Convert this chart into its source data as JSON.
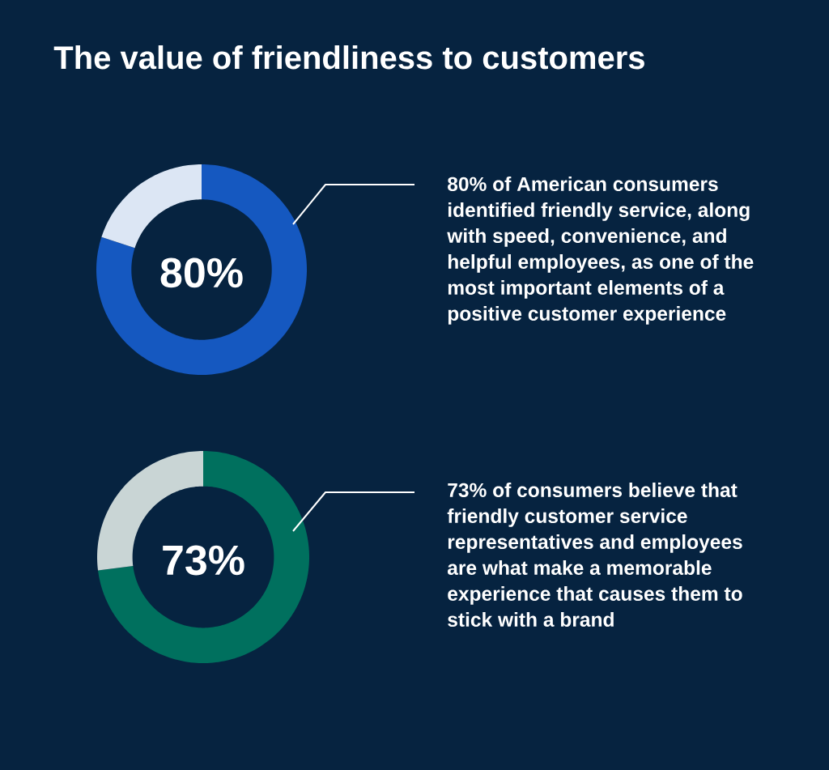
{
  "chart_data": [
    {
      "type": "donut",
      "title": "The value of friendliness to customers",
      "categories": [
        null,
        null
      ],
      "values": [
        80,
        20
      ],
      "colors": [
        "#1558c0",
        "#dce6f4"
      ],
      "value_labels": [
        "80%",
        null
      ],
      "annotations": [
        "80% of American consumers identified friendly service, along with speed, convenience, and helpful employees, as one of the most important elements of a positive customer experience"
      ]
    },
    {
      "type": "donut",
      "categories": [
        null,
        null
      ],
      "values": [
        73,
        27
      ],
      "colors": [
        "#00705e",
        "#c9d5d5"
      ],
      "value_labels": [
        "73%",
        null
      ],
      "annotations": [
        "73% of consumers believe that friendly customer service representatives and employees are what make a memorable experience that causes them to stick with a brand"
      ]
    }
  ]
}
